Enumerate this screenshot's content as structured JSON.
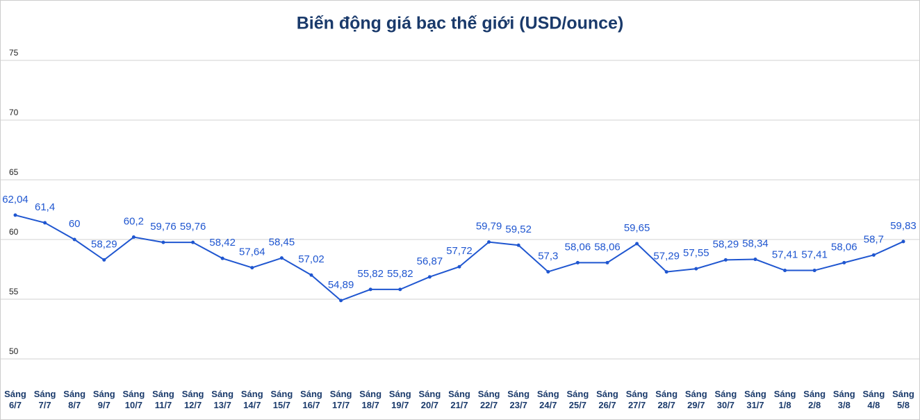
{
  "chart_data": {
    "type": "line",
    "title": "Biến động giá bạc thế giới (USD/ounce)",
    "categories": [
      "Sáng 6/7",
      "Sáng 7/7",
      "Sáng 8/7",
      "Sáng 9/7",
      "Sáng 10/7",
      "Sáng 11/7",
      "Sáng 12/7",
      "Sáng 13/7",
      "Sáng 14/7",
      "Sáng 15/7",
      "Sáng 16/7",
      "Sáng 17/7",
      "Sáng 18/7",
      "Sáng 19/7",
      "Sáng 20/7",
      "Sáng 21/7",
      "Sáng 22/7",
      "Sáng 23/7",
      "Sáng 24/7",
      "Sáng 25/7",
      "Sáng 26/7",
      "Sáng 27/7",
      "Sáng 28/7",
      "Sáng 29/7",
      "Sáng 30/7",
      "Sáng 31/7",
      "Sáng 1/8",
      "Sáng 2/8",
      "Sáng 3/8",
      "Sáng 4/8",
      "Sáng 5/8"
    ],
    "values": [
      62.04,
      61.4,
      60,
      58.29,
      60.2,
      59.76,
      59.76,
      58.42,
      57.64,
      58.45,
      57.02,
      54.89,
      55.82,
      55.82,
      56.87,
      57.72,
      59.79,
      59.52,
      57.3,
      58.06,
      58.06,
      59.65,
      57.29,
      57.55,
      58.29,
      58.34,
      57.41,
      57.41,
      58.06,
      58.7,
      59.83
    ],
    "value_labels": [
      "62,04",
      "61,4",
      "60",
      "58,29",
      "60,2",
      "59,76",
      "59,76",
      "58,42",
      "57,64",
      "58,45",
      "57,02",
      "54,89",
      "55,82",
      "55,82",
      "56,87",
      "57,72",
      "59,79",
      "59,52",
      "57,3",
      "58,06",
      "58,06",
      "59,65",
      "57,29",
      "57,55",
      "58,29",
      "58,34",
      "57,41",
      "57,41",
      "58,06",
      "58,7",
      "59,83"
    ],
    "color": "#1f56d0",
    "ylim": [
      50,
      80
    ],
    "yticks": [
      50,
      55,
      60,
      65,
      70,
      75
    ],
    "grid": true
  }
}
